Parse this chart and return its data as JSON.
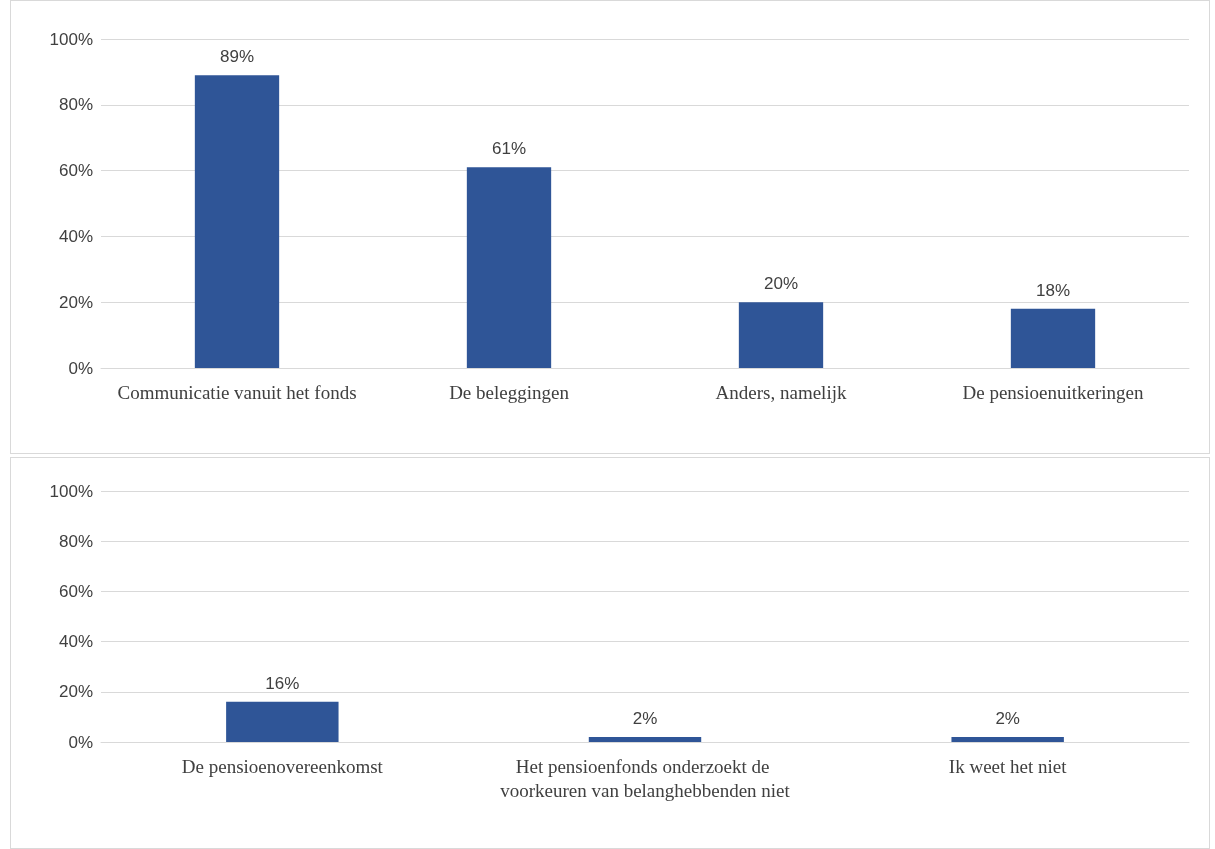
{
  "chart_data": [
    {
      "type": "bar",
      "categories": [
        "Communicatie vanuit het fonds",
        "De beleggingen",
        "Anders, namelijk",
        "De pensioenuitkeringen"
      ],
      "values": [
        89,
        61,
        20,
        18
      ],
      "color": "#2f5597",
      "value_labels": [
        "89%",
        "61%",
        "20%",
        "18%"
      ],
      "ylim": [
        0,
        100
      ],
      "yticks": [
        {
          "value": 0,
          "label": "0%"
        },
        {
          "value": 20,
          "label": "20%"
        },
        {
          "value": 40,
          "label": "40%"
        },
        {
          "value": 60,
          "label": "60%"
        },
        {
          "value": 80,
          "label": "80%"
        },
        {
          "value": 100,
          "label": "100%"
        }
      ],
      "grid": "y"
    },
    {
      "type": "bar",
      "categories": [
        "De pensioenovereenkomst",
        "Het pensioenfonds onderzoekt de voorkeuren van belanghebbenden niet",
        "Ik weet het niet"
      ],
      "values": [
        16,
        2,
        2
      ],
      "color": "#2f5597",
      "value_labels": [
        "16%",
        "2%",
        "2%"
      ],
      "ylim": [
        0,
        100
      ],
      "yticks": [
        {
          "value": 0,
          "label": "0%"
        },
        {
          "value": 20,
          "label": "20%"
        },
        {
          "value": 40,
          "label": "40%"
        },
        {
          "value": 60,
          "label": "60%"
        },
        {
          "value": 80,
          "label": "80%"
        },
        {
          "value": 100,
          "label": "100%"
        }
      ],
      "grid": "y"
    }
  ]
}
